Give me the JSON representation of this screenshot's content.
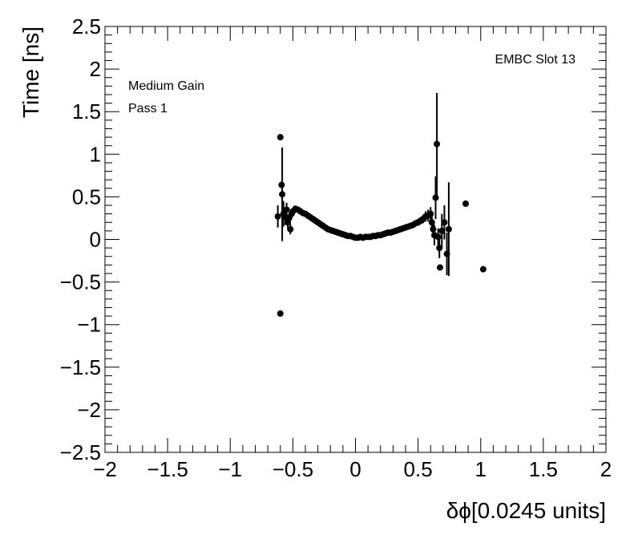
{
  "chart_data": {
    "type": "scatter",
    "title": "",
    "xlabel": "δϕ[0.0245 units]",
    "ylabel": "Time [ns]",
    "xlim": [
      -2,
      2
    ],
    "ylim": [
      -2.5,
      2.5
    ],
    "grid": false,
    "legend": "none",
    "annotations": {
      "top_right": "EMBC Slot 13",
      "line1": "Medium Gain",
      "line2": "Pass 1"
    },
    "x_ticks": [
      "−2",
      "−1.5",
      "−1",
      "−0.5",
      "0",
      "0.5",
      "1",
      "1.5",
      "2"
    ],
    "y_ticks": [
      "−2.5",
      "−2",
      "−1.5",
      "−1",
      "−0.5",
      "0",
      "0.5",
      "1",
      "1.5",
      "2",
      "2.5"
    ],
    "x_tick_values": [
      -2,
      -1.5,
      -1,
      -0.5,
      0,
      0.5,
      1,
      1.5,
      2
    ],
    "y_tick_values": [
      -2.5,
      -2,
      -1.5,
      -1,
      -0.5,
      0,
      0.5,
      1,
      1.5,
      2,
      2.5
    ],
    "points": [
      {
        "x": -0.62,
        "y": 0.27,
        "err": 0.13
      },
      {
        "x": -0.6,
        "y": 1.2,
        "err": 0.0
      },
      {
        "x": -0.6,
        "y": -0.87,
        "err": 0.0
      },
      {
        "x": -0.59,
        "y": 0.64,
        "err": 0.0
      },
      {
        "x": -0.585,
        "y": 0.53,
        "err": 0.55
      },
      {
        "x": -0.575,
        "y": 0.3,
        "err": 0.15
      },
      {
        "x": -0.56,
        "y": 0.27,
        "err": 0.1
      },
      {
        "x": -0.55,
        "y": 0.35,
        "err": 0.08
      },
      {
        "x": -0.54,
        "y": 0.2,
        "err": 0.08
      },
      {
        "x": -0.53,
        "y": 0.25,
        "err": 0.06
      },
      {
        "x": -0.52,
        "y": 0.12,
        "err": 0.06
      },
      {
        "x": -0.51,
        "y": 0.3,
        "err": 0.05
      },
      {
        "x": -0.5,
        "y": 0.33,
        "err": 0.04
      },
      {
        "x": -0.48,
        "y": 0.36,
        "err": 0.03
      },
      {
        "x": -0.46,
        "y": 0.35,
        "err": 0.03
      },
      {
        "x": -0.44,
        "y": 0.33,
        "err": 0.02
      },
      {
        "x": -0.42,
        "y": 0.31,
        "err": 0.02
      },
      {
        "x": -0.4,
        "y": 0.3,
        "err": 0.02
      },
      {
        "x": -0.38,
        "y": 0.28,
        "err": 0.02
      },
      {
        "x": -0.36,
        "y": 0.26,
        "err": 0.02
      },
      {
        "x": -0.34,
        "y": 0.24,
        "err": 0.02
      },
      {
        "x": -0.32,
        "y": 0.22,
        "err": 0.02
      },
      {
        "x": -0.3,
        "y": 0.2,
        "err": 0.02
      },
      {
        "x": -0.28,
        "y": 0.18,
        "err": 0.02
      },
      {
        "x": -0.26,
        "y": 0.16,
        "err": 0.02
      },
      {
        "x": -0.24,
        "y": 0.14,
        "err": 0.02
      },
      {
        "x": -0.22,
        "y": 0.12,
        "err": 0.02
      },
      {
        "x": -0.2,
        "y": 0.11,
        "err": 0.02
      },
      {
        "x": -0.18,
        "y": 0.1,
        "err": 0.02
      },
      {
        "x": -0.16,
        "y": 0.09,
        "err": 0.02
      },
      {
        "x": -0.14,
        "y": 0.08,
        "err": 0.02
      },
      {
        "x": -0.12,
        "y": 0.07,
        "err": 0.02
      },
      {
        "x": -0.1,
        "y": 0.06,
        "err": 0.02
      },
      {
        "x": -0.08,
        "y": 0.05,
        "err": 0.02
      },
      {
        "x": -0.06,
        "y": 0.04,
        "err": 0.02
      },
      {
        "x": -0.04,
        "y": 0.04,
        "err": 0.02
      },
      {
        "x": -0.02,
        "y": 0.03,
        "err": 0.02
      },
      {
        "x": 0.0,
        "y": 0.02,
        "err": 0.02
      },
      {
        "x": 0.02,
        "y": 0.02,
        "err": 0.02
      },
      {
        "x": 0.04,
        "y": 0.03,
        "err": 0.02
      },
      {
        "x": 0.06,
        "y": 0.02,
        "err": 0.02
      },
      {
        "x": 0.08,
        "y": 0.03,
        "err": 0.02
      },
      {
        "x": 0.1,
        "y": 0.03,
        "err": 0.02
      },
      {
        "x": 0.12,
        "y": 0.03,
        "err": 0.02
      },
      {
        "x": 0.14,
        "y": 0.04,
        "err": 0.02
      },
      {
        "x": 0.16,
        "y": 0.04,
        "err": 0.02
      },
      {
        "x": 0.18,
        "y": 0.05,
        "err": 0.02
      },
      {
        "x": 0.2,
        "y": 0.05,
        "err": 0.02
      },
      {
        "x": 0.22,
        "y": 0.06,
        "err": 0.02
      },
      {
        "x": 0.24,
        "y": 0.07,
        "err": 0.02
      },
      {
        "x": 0.26,
        "y": 0.08,
        "err": 0.02
      },
      {
        "x": 0.28,
        "y": 0.08,
        "err": 0.02
      },
      {
        "x": 0.3,
        "y": 0.09,
        "err": 0.02
      },
      {
        "x": 0.32,
        "y": 0.1,
        "err": 0.02
      },
      {
        "x": 0.34,
        "y": 0.11,
        "err": 0.02
      },
      {
        "x": 0.36,
        "y": 0.12,
        "err": 0.02
      },
      {
        "x": 0.38,
        "y": 0.13,
        "err": 0.02
      },
      {
        "x": 0.4,
        "y": 0.14,
        "err": 0.02
      },
      {
        "x": 0.42,
        "y": 0.15,
        "err": 0.02
      },
      {
        "x": 0.44,
        "y": 0.16,
        "err": 0.03
      },
      {
        "x": 0.46,
        "y": 0.17,
        "err": 0.03
      },
      {
        "x": 0.48,
        "y": 0.19,
        "err": 0.03
      },
      {
        "x": 0.5,
        "y": 0.2,
        "err": 0.04
      },
      {
        "x": 0.52,
        "y": 0.22,
        "err": 0.04
      },
      {
        "x": 0.54,
        "y": 0.24,
        "err": 0.05
      },
      {
        "x": 0.56,
        "y": 0.27,
        "err": 0.06
      },
      {
        "x": 0.58,
        "y": 0.28,
        "err": 0.07
      },
      {
        "x": 0.6,
        "y": 0.3,
        "err": 0.08
      },
      {
        "x": 0.61,
        "y": 0.2,
        "err": 0.1
      },
      {
        "x": 0.62,
        "y": 0.12,
        "err": 0.1
      },
      {
        "x": 0.63,
        "y": 0.05,
        "err": 0.12
      },
      {
        "x": 0.64,
        "y": 0.49,
        "err": 0.25
      },
      {
        "x": 0.65,
        "y": 1.12,
        "err": 0.6
      },
      {
        "x": 0.66,
        "y": 0.03,
        "err": 0.1
      },
      {
        "x": 0.67,
        "y": -0.1,
        "err": 0.12
      },
      {
        "x": 0.675,
        "y": -0.33,
        "err": 0.0
      },
      {
        "x": 0.69,
        "y": 0.1,
        "err": 0.2
      },
      {
        "x": 0.71,
        "y": 0.2,
        "err": 0.2
      },
      {
        "x": 0.73,
        "y": -0.17,
        "err": 0.25
      },
      {
        "x": 0.745,
        "y": 0.12,
        "err": 0.55
      },
      {
        "x": 0.88,
        "y": 0.42,
        "err": 0.0
      },
      {
        "x": 1.02,
        "y": -0.35,
        "err": 0.0
      }
    ]
  }
}
